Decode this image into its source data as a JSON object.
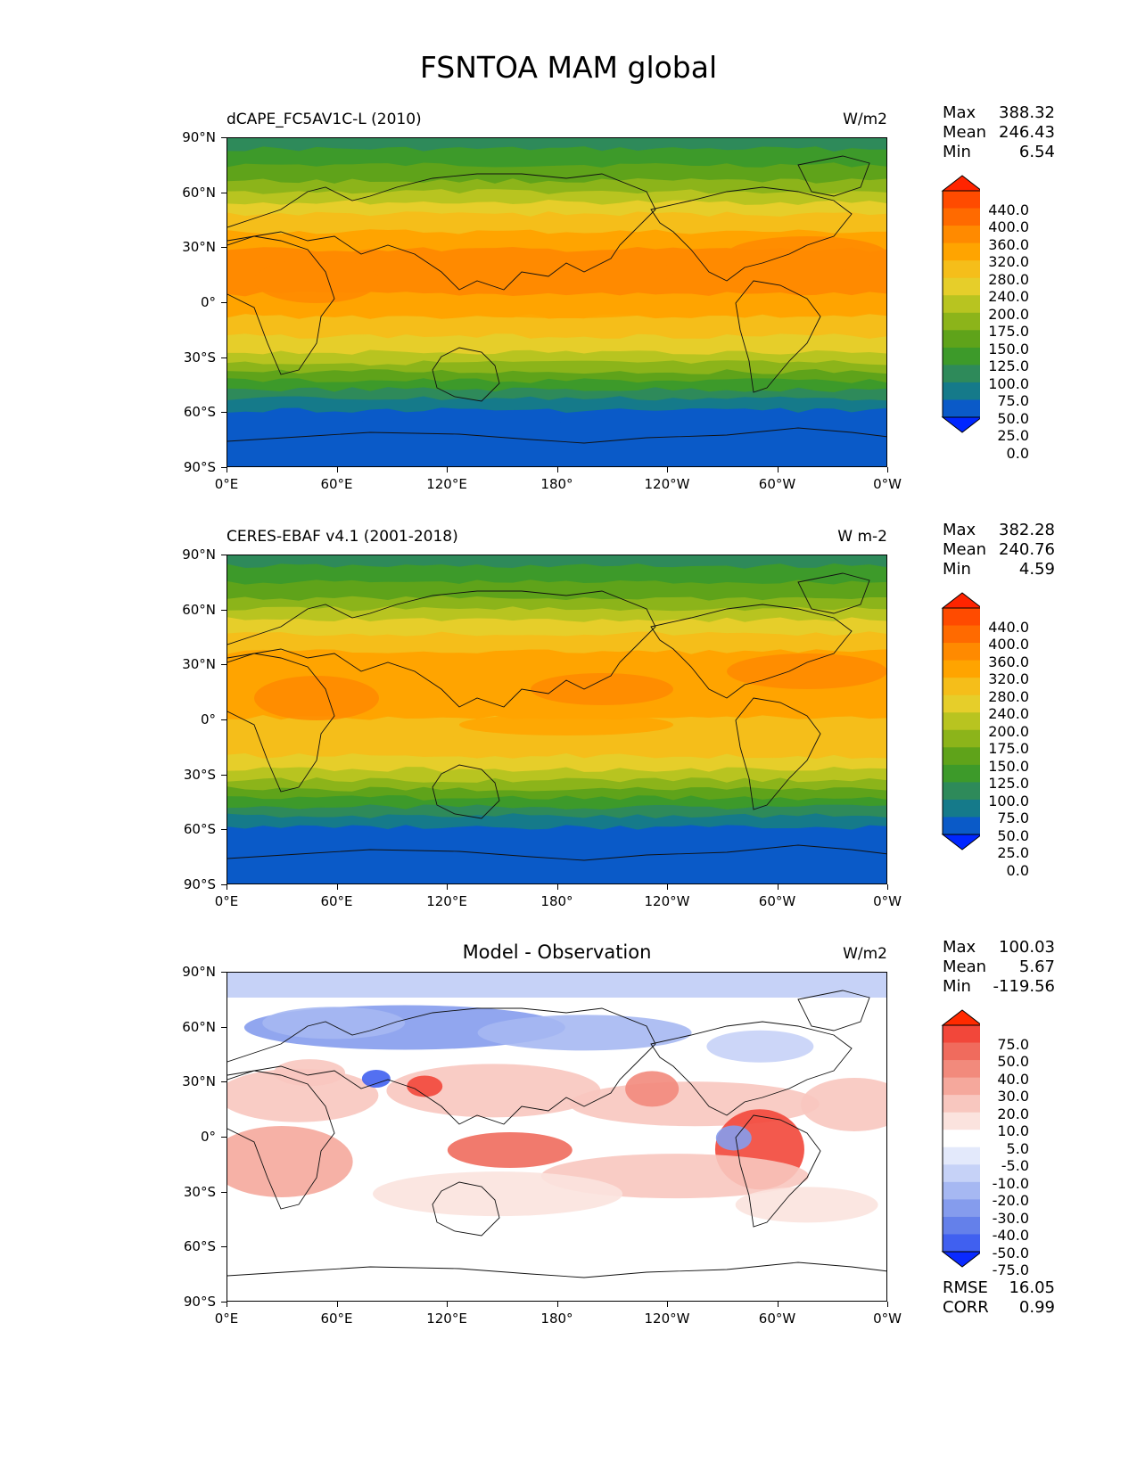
{
  "figure": {
    "title": "FSNTOA MAM global"
  },
  "axes": {
    "ytick_labels": [
      "90°N",
      "60°N",
      "30°N",
      "0°",
      "30°S",
      "60°S",
      "90°S"
    ],
    "xtick_labels": [
      "0°E",
      "60°E",
      "120°E",
      "180°",
      "120°W",
      "60°W",
      "0°W"
    ]
  },
  "panels": [
    {
      "title": "dCAPE_FC5AV1C-L (2010)",
      "title_position": "left",
      "units": "W/m2",
      "stats": [
        {
          "label": "Max",
          "value": "388.32"
        },
        {
          "label": "Mean",
          "value": "246.43"
        },
        {
          "label": "Min",
          "value": "6.54"
        }
      ],
      "colorbar": {
        "levels": [
          "440.0",
          "400.0",
          "360.0",
          "320.0",
          "280.0",
          "240.0",
          "200.0",
          "175.0",
          "150.0",
          "125.0",
          "100.0",
          "75.0",
          "50.0",
          "25.0",
          "0.0"
        ],
        "colors": [
          "#ff2400",
          "#ff4b00",
          "#ff6a00",
          "#ff8a00",
          "#ffa400",
          "#f5be1a",
          "#e6ce2a",
          "#b8c420",
          "#8cb41a",
          "#5fa31a",
          "#3d9a2a",
          "#2e8a5a",
          "#157a8a",
          "#0a5ac8",
          "#0026ff"
        ]
      }
    },
    {
      "title": "CERES-EBAF v4.1 (2001-2018)",
      "title_position": "left",
      "units": "W m-2",
      "stats": [
        {
          "label": "Max",
          "value": "382.28"
        },
        {
          "label": "Mean",
          "value": "240.76"
        },
        {
          "label": "Min",
          "value": "4.59"
        }
      ],
      "colorbar": {
        "levels": [
          "440.0",
          "400.0",
          "360.0",
          "320.0",
          "280.0",
          "240.0",
          "200.0",
          "175.0",
          "150.0",
          "125.0",
          "100.0",
          "75.0",
          "50.0",
          "25.0",
          "0.0"
        ],
        "colors": [
          "#ff2400",
          "#ff4b00",
          "#ff6a00",
          "#ff8a00",
          "#ffa400",
          "#f5be1a",
          "#e6ce2a",
          "#b8c420",
          "#8cb41a",
          "#5fa31a",
          "#3d9a2a",
          "#2e8a5a",
          "#157a8a",
          "#0a5ac8",
          "#0026ff"
        ]
      }
    },
    {
      "title": "Model - Observation",
      "title_position": "center",
      "units": "W/m2",
      "stats": [
        {
          "label": "Max",
          "value": "100.03"
        },
        {
          "label": "Mean",
          "value": "5.67"
        },
        {
          "label": "Min",
          "value": "-119.56"
        }
      ],
      "extra_stats": [
        {
          "label": "RMSE",
          "value": "16.05"
        },
        {
          "label": "CORR",
          "value": "0.99"
        }
      ],
      "colorbar": {
        "levels": [
          "75.0",
          "50.0",
          "40.0",
          "30.0",
          "20.0",
          "10.0",
          "5.0",
          "-5.0",
          "-10.0",
          "-20.0",
          "-30.0",
          "-40.0",
          "-50.0",
          "-75.0"
        ],
        "colors": [
          "#ff2a00",
          "#f2473a",
          "#f06b5d",
          "#f28a7c",
          "#f5a89c",
          "#f8c7bf",
          "#fbe3de",
          "#ffffff",
          "#e3e9fb",
          "#c6d2f7",
          "#a6b8f2",
          "#859ced",
          "#6480ea",
          "#4060f0",
          "#0a2aff"
        ]
      }
    }
  ],
  "chart_data": [
    {
      "type": "heatmap",
      "title": "dCAPE_FC5AV1C-L (2010)",
      "units": "W/m2",
      "x_ticks": [
        "0°E",
        "60°E",
        "120°E",
        "180°",
        "120°W",
        "60°W",
        "0°W"
      ],
      "y_ticks": [
        "90°N",
        "60°N",
        "30°N",
        "0°",
        "30°S",
        "60°S",
        "90°S"
      ],
      "zonal_mean_estimate": {
        "lat": [
          -90,
          -60,
          -30,
          0,
          30,
          60,
          90
        ],
        "value": [
          5,
          75,
          240,
          310,
          290,
          150,
          110
        ]
      },
      "max": 388.32,
      "mean": 246.43,
      "min": 6.54
    },
    {
      "type": "heatmap",
      "title": "CERES-EBAF v4.1 (2001-2018)",
      "units": "W m-2",
      "x_ticks": [
        "0°E",
        "60°E",
        "120°E",
        "180°",
        "120°W",
        "60°W",
        "0°W"
      ],
      "y_ticks": [
        "90°N",
        "60°N",
        "30°N",
        "0°",
        "30°S",
        "60°S",
        "90°S"
      ],
      "zonal_mean_estimate": {
        "lat": [
          -90,
          -60,
          -30,
          0,
          30,
          60,
          90
        ],
        "value": [
          4,
          70,
          230,
          300,
          285,
          160,
          120
        ]
      },
      "max": 382.28,
      "mean": 240.76,
      "min": 4.59
    },
    {
      "type": "heatmap",
      "title": "Model - Observation",
      "units": "W/m2",
      "x_ticks": [
        "0°E",
        "60°E",
        "120°E",
        "180°",
        "120°W",
        "60°W",
        "0°W"
      ],
      "y_ticks": [
        "90°N",
        "60°N",
        "30°N",
        "0°",
        "30°S",
        "60°S",
        "90°S"
      ],
      "max": 100.03,
      "mean": 5.67,
      "min": -119.56,
      "rmse": 16.05,
      "corr": 0.99
    }
  ]
}
